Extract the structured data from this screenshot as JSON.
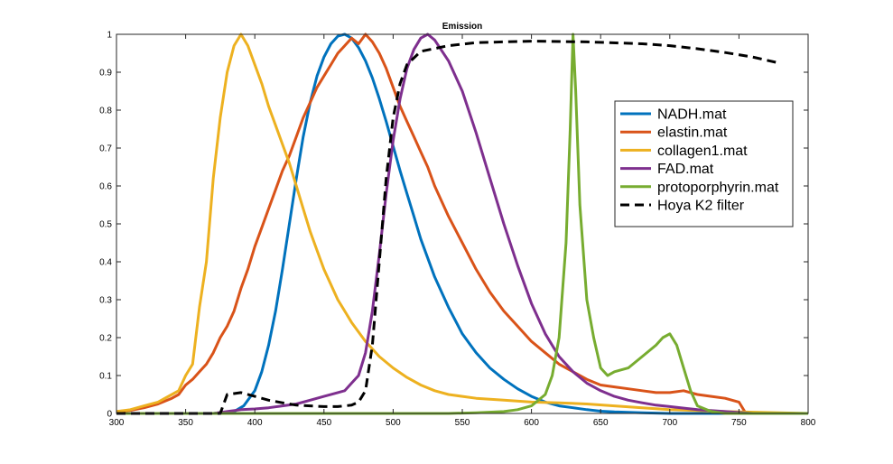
{
  "chart_data": {
    "type": "line",
    "title": "Emission",
    "xlabel": "",
    "ylabel": "",
    "xlim": [
      300,
      800
    ],
    "ylim": [
      0,
      1
    ],
    "xticks": [
      300,
      350,
      400,
      450,
      500,
      550,
      600,
      650,
      700,
      750,
      800
    ],
    "yticks": [
      0,
      0.1,
      0.2,
      0.3,
      0.4,
      0.5,
      0.6,
      0.7,
      0.8,
      0.9,
      1
    ],
    "xtick_labels": [
      "300",
      "350",
      "400",
      "450",
      "500",
      "550",
      "600",
      "650",
      "700",
      "750",
      "800"
    ],
    "ytick_labels": [
      "0",
      "0.1",
      "0.2",
      "0.3",
      "0.4",
      "0.5",
      "0.6",
      "0.7",
      "0.8",
      "0.9",
      "1"
    ],
    "grid": false,
    "legend_position": "right",
    "series": [
      {
        "name": "NADH.mat",
        "color": "#0072BD",
        "dash": "solid",
        "points": [
          [
            300,
            0
          ],
          [
            370,
            0
          ],
          [
            385,
            0.005
          ],
          [
            392,
            0.02
          ],
          [
            400,
            0.06
          ],
          [
            405,
            0.11
          ],
          [
            410,
            0.18
          ],
          [
            415,
            0.27
          ],
          [
            420,
            0.38
          ],
          [
            425,
            0.5
          ],
          [
            430,
            0.62
          ],
          [
            435,
            0.73
          ],
          [
            440,
            0.82
          ],
          [
            445,
            0.89
          ],
          [
            450,
            0.94
          ],
          [
            455,
            0.975
          ],
          [
            460,
            0.995
          ],
          [
            465,
            1.0
          ],
          [
            470,
            0.99
          ],
          [
            475,
            0.965
          ],
          [
            480,
            0.93
          ],
          [
            485,
            0.885
          ],
          [
            490,
            0.83
          ],
          [
            495,
            0.77
          ],
          [
            500,
            0.705
          ],
          [
            505,
            0.64
          ],
          [
            510,
            0.58
          ],
          [
            515,
            0.52
          ],
          [
            520,
            0.46
          ],
          [
            525,
            0.41
          ],
          [
            530,
            0.36
          ],
          [
            540,
            0.28
          ],
          [
            550,
            0.21
          ],
          [
            560,
            0.16
          ],
          [
            570,
            0.12
          ],
          [
            580,
            0.09
          ],
          [
            590,
            0.065
          ],
          [
            600,
            0.045
          ],
          [
            610,
            0.03
          ],
          [
            620,
            0.02
          ],
          [
            630,
            0.015
          ],
          [
            640,
            0.01
          ],
          [
            650,
            0.006
          ],
          [
            660,
            0.004
          ],
          [
            680,
            0.002
          ],
          [
            700,
            0.0
          ],
          [
            800,
            0
          ]
        ]
      },
      {
        "name": "elastin.mat",
        "color": "#D95319",
        "dash": "solid",
        "points": [
          [
            300,
            0.005
          ],
          [
            310,
            0.008
          ],
          [
            320,
            0.015
          ],
          [
            330,
            0.025
          ],
          [
            340,
            0.04
          ],
          [
            345,
            0.05
          ],
          [
            350,
            0.075
          ],
          [
            355,
            0.09
          ],
          [
            360,
            0.11
          ],
          [
            365,
            0.13
          ],
          [
            370,
            0.16
          ],
          [
            375,
            0.2
          ],
          [
            380,
            0.23
          ],
          [
            385,
            0.27
          ],
          [
            390,
            0.33
          ],
          [
            395,
            0.38
          ],
          [
            400,
            0.44
          ],
          [
            405,
            0.49
          ],
          [
            410,
            0.54
          ],
          [
            415,
            0.59
          ],
          [
            420,
            0.64
          ],
          [
            425,
            0.68
          ],
          [
            430,
            0.73
          ],
          [
            435,
            0.78
          ],
          [
            440,
            0.82
          ],
          [
            445,
            0.86
          ],
          [
            450,
            0.89
          ],
          [
            455,
            0.92
          ],
          [
            460,
            0.95
          ],
          [
            465,
            0.97
          ],
          [
            470,
            0.99
          ],
          [
            475,
            0.975
          ],
          [
            480,
            1.0
          ],
          [
            485,
            0.98
          ],
          [
            490,
            0.95
          ],
          [
            495,
            0.91
          ],
          [
            500,
            0.86
          ],
          [
            505,
            0.81
          ],
          [
            510,
            0.77
          ],
          [
            515,
            0.73
          ],
          [
            520,
            0.69
          ],
          [
            525,
            0.65
          ],
          [
            530,
            0.6
          ],
          [
            540,
            0.52
          ],
          [
            550,
            0.45
          ],
          [
            560,
            0.38
          ],
          [
            570,
            0.32
          ],
          [
            580,
            0.27
          ],
          [
            590,
            0.23
          ],
          [
            600,
            0.19
          ],
          [
            610,
            0.16
          ],
          [
            620,
            0.13
          ],
          [
            630,
            0.11
          ],
          [
            640,
            0.09
          ],
          [
            650,
            0.075
          ],
          [
            660,
            0.07
          ],
          [
            670,
            0.065
          ],
          [
            680,
            0.06
          ],
          [
            690,
            0.055
          ],
          [
            700,
            0.055
          ],
          [
            710,
            0.06
          ],
          [
            720,
            0.05
          ],
          [
            730,
            0.045
          ],
          [
            740,
            0.04
          ],
          [
            750,
            0.03
          ],
          [
            755,
            0.0
          ],
          [
            800,
            0
          ]
        ]
      },
      {
        "name": "collagen1.mat",
        "color": "#EDB120",
        "dash": "solid",
        "points": [
          [
            300,
            0.005
          ],
          [
            310,
            0.01
          ],
          [
            320,
            0.02
          ],
          [
            330,
            0.03
          ],
          [
            340,
            0.05
          ],
          [
            345,
            0.06
          ],
          [
            350,
            0.1
          ],
          [
            355,
            0.13
          ],
          [
            360,
            0.28
          ],
          [
            365,
            0.4
          ],
          [
            370,
            0.62
          ],
          [
            375,
            0.78
          ],
          [
            380,
            0.9
          ],
          [
            385,
            0.97
          ],
          [
            390,
            1.0
          ],
          [
            395,
            0.97
          ],
          [
            400,
            0.92
          ],
          [
            405,
            0.87
          ],
          [
            410,
            0.81
          ],
          [
            415,
            0.76
          ],
          [
            420,
            0.71
          ],
          [
            425,
            0.66
          ],
          [
            430,
            0.6
          ],
          [
            435,
            0.54
          ],
          [
            440,
            0.48
          ],
          [
            445,
            0.43
          ],
          [
            450,
            0.38
          ],
          [
            455,
            0.34
          ],
          [
            460,
            0.3
          ],
          [
            465,
            0.27
          ],
          [
            470,
            0.24
          ],
          [
            475,
            0.215
          ],
          [
            480,
            0.19
          ],
          [
            490,
            0.15
          ],
          [
            500,
            0.12
          ],
          [
            510,
            0.095
          ],
          [
            520,
            0.075
          ],
          [
            530,
            0.06
          ],
          [
            540,
            0.05
          ],
          [
            560,
            0.04
          ],
          [
            580,
            0.035
          ],
          [
            600,
            0.03
          ],
          [
            620,
            0.028
          ],
          [
            640,
            0.025
          ],
          [
            660,
            0.02
          ],
          [
            680,
            0.015
          ],
          [
            700,
            0.01
          ],
          [
            740,
            0.005
          ],
          [
            800,
            0
          ]
        ]
      },
      {
        "name": "FAD.mat",
        "color": "#7E2F8E",
        "dash": "solid",
        "points": [
          [
            300,
            0
          ],
          [
            370,
            0
          ],
          [
            380,
            0.005
          ],
          [
            390,
            0.01
          ],
          [
            400,
            0.012
          ],
          [
            410,
            0.015
          ],
          [
            420,
            0.02
          ],
          [
            430,
            0.025
          ],
          [
            440,
            0.035
          ],
          [
            450,
            0.045
          ],
          [
            460,
            0.055
          ],
          [
            465,
            0.06
          ],
          [
            470,
            0.08
          ],
          [
            475,
            0.1
          ],
          [
            480,
            0.16
          ],
          [
            485,
            0.27
          ],
          [
            490,
            0.42
          ],
          [
            495,
            0.58
          ],
          [
            500,
            0.72
          ],
          [
            505,
            0.83
          ],
          [
            510,
            0.91
          ],
          [
            515,
            0.96
          ],
          [
            520,
            0.99
          ],
          [
            525,
            1.0
          ],
          [
            530,
            0.985
          ],
          [
            540,
            0.93
          ],
          [
            550,
            0.85
          ],
          [
            560,
            0.74
          ],
          [
            570,
            0.62
          ],
          [
            580,
            0.5
          ],
          [
            590,
            0.39
          ],
          [
            600,
            0.29
          ],
          [
            610,
            0.21
          ],
          [
            620,
            0.15
          ],
          [
            630,
            0.11
          ],
          [
            640,
            0.08
          ],
          [
            650,
            0.06
          ],
          [
            660,
            0.045
          ],
          [
            670,
            0.035
          ],
          [
            680,
            0.028
          ],
          [
            690,
            0.022
          ],
          [
            700,
            0.018
          ],
          [
            720,
            0.01
          ],
          [
            740,
            0.005
          ],
          [
            760,
            0.0
          ],
          [
            800,
            0
          ]
        ]
      },
      {
        "name": "protoporphyrin.mat",
        "color": "#77AC30",
        "dash": "solid",
        "points": [
          [
            300,
            0
          ],
          [
            540,
            0
          ],
          [
            560,
            0.002
          ],
          [
            580,
            0.005
          ],
          [
            590,
            0.01
          ],
          [
            600,
            0.02
          ],
          [
            610,
            0.05
          ],
          [
            615,
            0.1
          ],
          [
            620,
            0.2
          ],
          [
            625,
            0.45
          ],
          [
            628,
            0.75
          ],
          [
            630,
            1.0
          ],
          [
            632,
            0.85
          ],
          [
            635,
            0.55
          ],
          [
            640,
            0.3
          ],
          [
            645,
            0.2
          ],
          [
            650,
            0.12
          ],
          [
            655,
            0.1
          ],
          [
            660,
            0.11
          ],
          [
            670,
            0.12
          ],
          [
            680,
            0.15
          ],
          [
            690,
            0.18
          ],
          [
            695,
            0.2
          ],
          [
            700,
            0.21
          ],
          [
            705,
            0.18
          ],
          [
            710,
            0.12
          ],
          [
            715,
            0.06
          ],
          [
            720,
            0.02
          ],
          [
            730,
            0.005
          ],
          [
            740,
            0.0
          ],
          [
            800,
            0
          ]
        ]
      },
      {
        "name": "Hoya K2 filter",
        "color": "#000000",
        "dash": "dashed",
        "points": [
          [
            300,
            0
          ],
          [
            375,
            0
          ],
          [
            380,
            0.05
          ],
          [
            390,
            0.055
          ],
          [
            400,
            0.045
          ],
          [
            410,
            0.035
          ],
          [
            420,
            0.028
          ],
          [
            430,
            0.022
          ],
          [
            440,
            0.02
          ],
          [
            450,
            0.018
          ],
          [
            460,
            0.018
          ],
          [
            470,
            0.022
          ],
          [
            475,
            0.03
          ],
          [
            480,
            0.06
          ],
          [
            485,
            0.18
          ],
          [
            490,
            0.4
          ],
          [
            495,
            0.62
          ],
          [
            500,
            0.78
          ],
          [
            505,
            0.87
          ],
          [
            510,
            0.92
          ],
          [
            520,
            0.955
          ],
          [
            540,
            0.97
          ],
          [
            560,
            0.978
          ],
          [
            580,
            0.98
          ],
          [
            600,
            0.982
          ],
          [
            640,
            0.98
          ],
          [
            680,
            0.975
          ],
          [
            700,
            0.97
          ],
          [
            720,
            0.962
          ],
          [
            740,
            0.952
          ],
          [
            760,
            0.94
          ],
          [
            778,
            0.925
          ]
        ]
      }
    ]
  }
}
